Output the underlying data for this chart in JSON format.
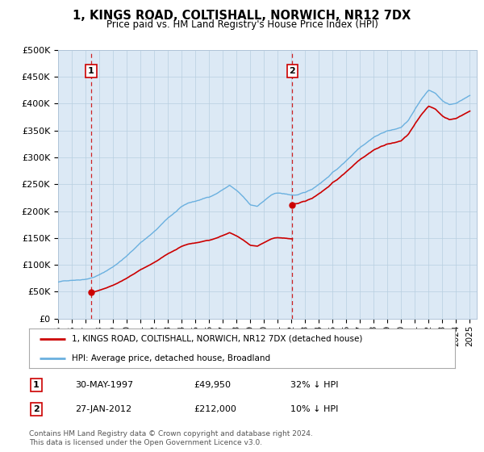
{
  "title": "1, KINGS ROAD, COLTISHALL, NORWICH, NR12 7DX",
  "subtitle": "Price paid vs. HM Land Registry's House Price Index (HPI)",
  "background_color": "#dce9f5",
  "plot_bg_color": "#dce9f5",
  "hpi_color": "#6ab0df",
  "price_color": "#cc0000",
  "vline_color": "#cc0000",
  "sale1_date": "30-MAY-1997",
  "sale1_price": 49950,
  "sale1_label": "1",
  "sale1_year": 1997.41,
  "sale2_date": "27-JAN-2012",
  "sale2_price": 212000,
  "sale2_label": "2",
  "sale2_year": 2012.07,
  "sale1_note": "32% ↓ HPI",
  "sale2_note": "10% ↓ HPI",
  "legend_line1": "1, KINGS ROAD, COLTISHALL, NORWICH, NR12 7DX (detached house)",
  "legend_line2": "HPI: Average price, detached house, Broadland",
  "footer": "Contains HM Land Registry data © Crown copyright and database right 2024.\nThis data is licensed under the Open Government Licence v3.0.",
  "ylim": [
    0,
    500000
  ],
  "yticks": [
    0,
    50000,
    100000,
    150000,
    200000,
    250000,
    300000,
    350000,
    400000,
    450000,
    500000
  ],
  "xlabel_years": [
    1995,
    1996,
    1997,
    1998,
    1999,
    2000,
    2001,
    2002,
    2003,
    2004,
    2005,
    2006,
    2007,
    2008,
    2009,
    2010,
    2011,
    2012,
    2013,
    2014,
    2015,
    2016,
    2017,
    2018,
    2019,
    2020,
    2021,
    2022,
    2023,
    2024,
    2025
  ],
  "hpi_anchors_x": [
    1995.0,
    1995.5,
    1996.0,
    1996.5,
    1997.0,
    1997.5,
    1998.0,
    1998.5,
    1999.0,
    1999.5,
    2000.0,
    2000.5,
    2001.0,
    2001.5,
    2002.0,
    2002.5,
    2003.0,
    2003.5,
    2004.0,
    2004.5,
    2005.0,
    2005.5,
    2006.0,
    2006.5,
    2007.0,
    2007.5,
    2008.0,
    2008.5,
    2009.0,
    2009.5,
    2010.0,
    2010.5,
    2011.0,
    2011.5,
    2012.0,
    2012.5,
    2013.0,
    2013.5,
    2014.0,
    2014.5,
    2015.0,
    2015.5,
    2016.0,
    2016.5,
    2017.0,
    2017.5,
    2018.0,
    2018.5,
    2019.0,
    2019.5,
    2020.0,
    2020.5,
    2021.0,
    2021.5,
    2022.0,
    2022.5,
    2023.0,
    2023.5,
    2024.0,
    2024.5,
    2025.0
  ],
  "hpi_anchors_y": [
    68000,
    70000,
    72000,
    73000,
    75000,
    78000,
    83000,
    90000,
    98000,
    108000,
    118000,
    130000,
    143000,
    153000,
    163000,
    175000,
    188000,
    198000,
    208000,
    215000,
    218000,
    222000,
    226000,
    232000,
    240000,
    248000,
    238000,
    225000,
    210000,
    208000,
    218000,
    228000,
    232000,
    230000,
    228000,
    228000,
    232000,
    238000,
    248000,
    258000,
    270000,
    280000,
    292000,
    305000,
    318000,
    328000,
    338000,
    344000,
    350000,
    352000,
    356000,
    368000,
    388000,
    408000,
    425000,
    418000,
    405000,
    398000,
    400000,
    408000,
    415000
  ]
}
